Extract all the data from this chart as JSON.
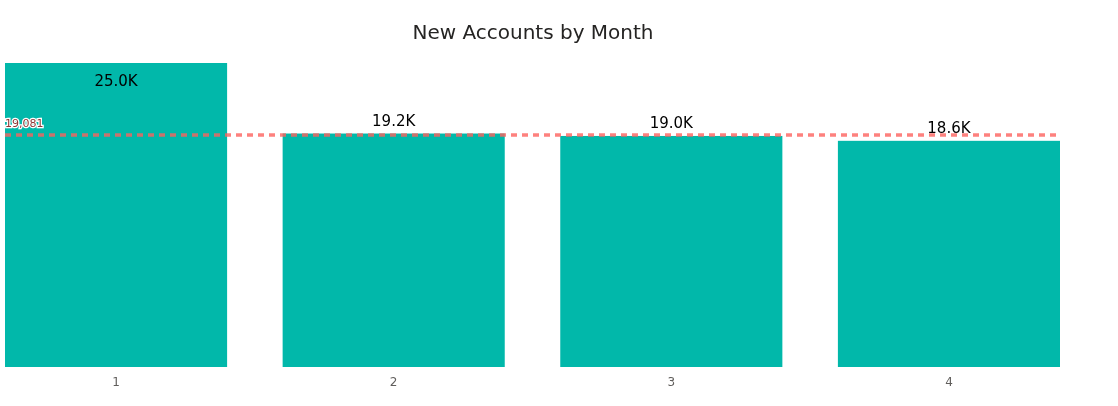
{
  "chart_data": {
    "type": "bar",
    "title": "New Accounts by Month",
    "categories": [
      "1",
      "2",
      "3",
      "4"
    ],
    "values": [
      25000,
      19200,
      19000,
      18600
    ],
    "value_labels": [
      "25.0K",
      "19.2K",
      "19.0K",
      "18.6K"
    ],
    "color": "#01b8aa",
    "ref_lines": [
      {
        "axis": "y",
        "value": 19081,
        "label": "19,081",
        "color": "#fd625e",
        "line_style": "dashed"
      }
    ],
    "tick_labels": "x"
  }
}
